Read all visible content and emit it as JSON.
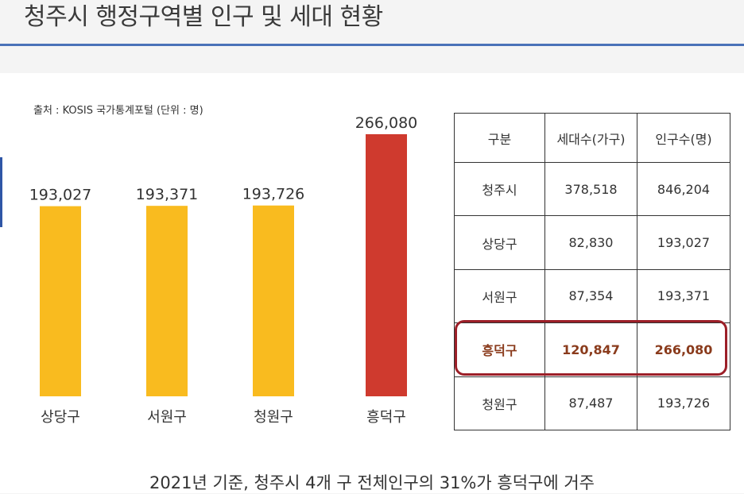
{
  "title": "청주시 행정구역별 인구 및 세대 현황",
  "source": "출처 : KOSIS 국가통계포털 (단위 : 명)",
  "colors": {
    "normal_bar": "#f9bb1f",
    "highlight_bar": "#cf3a2e",
    "accent": "#4a72b8",
    "highlight_border": "#9c1f28"
  },
  "chart_data": {
    "type": "bar",
    "title": "",
    "categories": [
      "상당구",
      "서원구",
      "청원구",
      "흥덕구"
    ],
    "values": [
      193027,
      193371,
      193726,
      266080
    ],
    "value_labels": [
      "193,027",
      "193,371",
      "193,726",
      "266,080"
    ],
    "highlight_index": 3,
    "xlabel": "",
    "ylabel": "",
    "grid": false
  },
  "table": {
    "headers": [
      "구분",
      "세대수(가구)",
      "인구수(명)"
    ],
    "rows": [
      [
        "청주시",
        "378,518",
        "846,204"
      ],
      [
        "상당구",
        "82,830",
        "193,027"
      ],
      [
        "서원구",
        "87,354",
        "193,371"
      ],
      [
        "흥덕구",
        "120,847",
        "266,080"
      ],
      [
        "청원구",
        "87,487",
        "193,726"
      ]
    ],
    "highlight_row": 3
  },
  "caption": "2021년 기준, 청주시 4개 구 전체인구의 31%가 흥덕구에 거주"
}
